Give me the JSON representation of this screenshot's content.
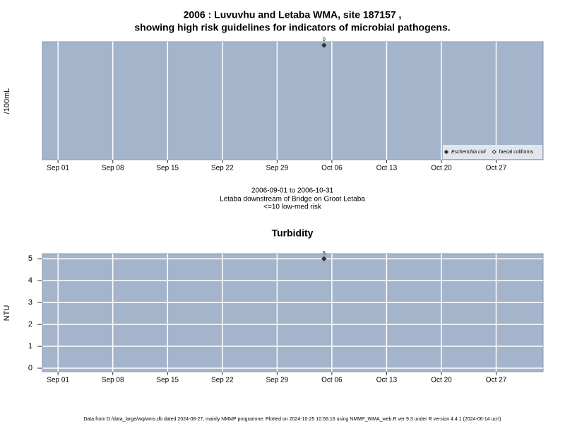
{
  "chart_data": [
    {
      "type": "scatter",
      "title": [
        "2006 : Luvuvhu and Letaba WMA, site 187157 ,",
        "showing high risk guidelines for indicators of microbial pathogens."
      ],
      "ylabel": "/100mL",
      "x": [
        "2006-10-05"
      ],
      "series": [
        {
          "name": "Escherichia coli",
          "color": "#333333",
          "marker": "filled",
          "values": [
            0
          ]
        },
        {
          "name": "faecal coliforms",
          "color": "#333333",
          "marker": "open",
          "values": [
            null
          ]
        }
      ],
      "xlim": [
        "2006-08-30",
        "2006-11-02"
      ],
      "xticks": [
        {
          "value": "2006-09-01",
          "label": "Sep 01"
        },
        {
          "value": "2006-09-08",
          "label": "Sep 08"
        },
        {
          "value": "2006-09-15",
          "label": "Sep 15"
        },
        {
          "value": "2006-09-22",
          "label": "Sep 22"
        },
        {
          "value": "2006-09-29",
          "label": "Sep 29"
        },
        {
          "value": "2006-10-06",
          "label": "Oct 06"
        },
        {
          "value": "2006-10-13",
          "label": "Oct 13"
        },
        {
          "value": "2006-10-20",
          "label": "Oct 20"
        },
        {
          "value": "2006-10-27",
          "label": "Oct 27"
        }
      ],
      "ylim": [
        -1,
        0.031
      ],
      "yticks": [],
      "grid": "x",
      "legend": "bottom-right",
      "caption": [
        "2006-09-01 to 2006-10-31",
        "Letaba downstream of Bridge on Groot Letaba",
        "<=10 low-med risk"
      ]
    },
    {
      "type": "scatter",
      "title": [
        "Turbidity"
      ],
      "ylabel": "NTU",
      "x": [
        "2006-10-05"
      ],
      "series": [
        {
          "name": "Turbidity",
          "color": "#333333",
          "marker": "filled",
          "values": [
            5
          ]
        }
      ],
      "xlim": [
        "2006-08-30",
        "2006-11-02"
      ],
      "xticks": [
        {
          "value": "2006-09-01",
          "label": "Sep 01"
        },
        {
          "value": "2006-09-08",
          "label": "Sep 08"
        },
        {
          "value": "2006-09-15",
          "label": "Sep 15"
        },
        {
          "value": "2006-09-22",
          "label": "Sep 22"
        },
        {
          "value": "2006-09-29",
          "label": "Sep 29"
        },
        {
          "value": "2006-10-06",
          "label": "Oct 06"
        },
        {
          "value": "2006-10-13",
          "label": "Oct 13"
        },
        {
          "value": "2006-10-20",
          "label": "Oct 20"
        },
        {
          "value": "2006-10-27",
          "label": "Oct 27"
        }
      ],
      "ylim": [
        -0.16,
        5.23
      ],
      "yticks": [
        0,
        1,
        2,
        3,
        4,
        5
      ],
      "grid": "xy"
    }
  ],
  "footer": "Data from D:/data_large/wq/wms.db dated 2024-08-27, mainly NMMP programme. Plotted on 2024-10-25 10:56:16 using NMMP_WMA_web.R ver 9.3 under R version 4.4.1 (2024-06-14 ucrt)"
}
